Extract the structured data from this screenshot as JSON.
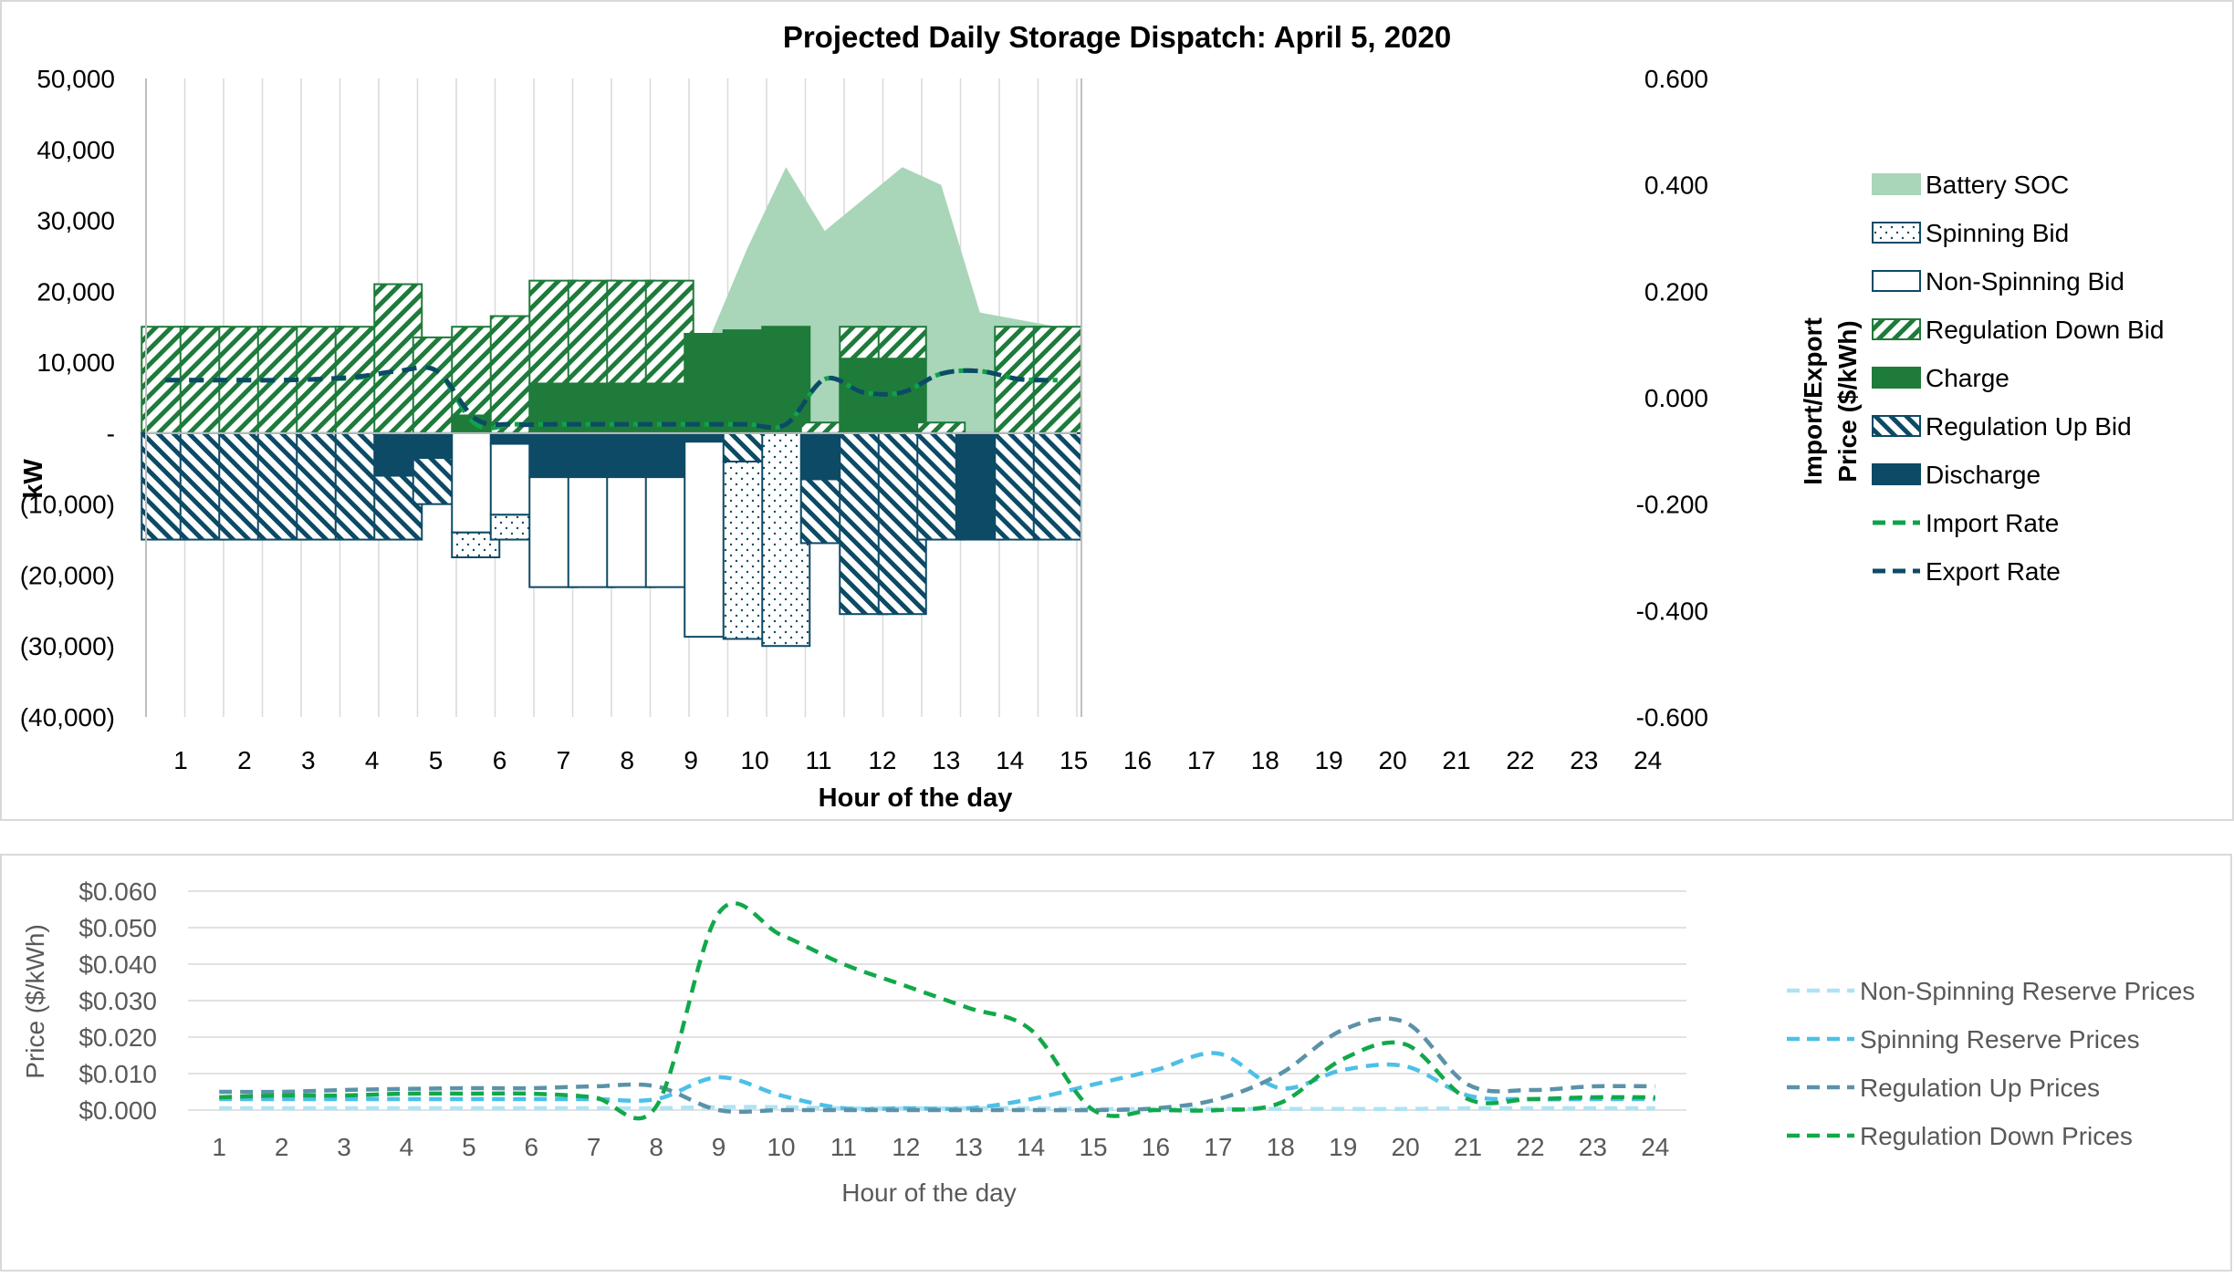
{
  "chart_data": [
    {
      "type": "bar",
      "title": "Projected Daily Storage Dispatch: April 5, 2020",
      "xlabel": "Hour of the day",
      "ylabel": "kW",
      "y2label_line1": "Import/Export",
      "y2label_line2": "Price ($/kWh)",
      "ylim": [
        -40000,
        50000
      ],
      "y2lim": [
        -0.6,
        0.6
      ],
      "yticks": [
        "50,000",
        "40,000",
        "30,000",
        "20,000",
        "10,000",
        "-",
        "(10,000)",
        "(20,000)",
        "(30,000)",
        "(40,000)"
      ],
      "y2ticks": [
        "0.600",
        "0.400",
        "0.200",
        "0.000",
        "-0.200",
        "-0.400",
        "-0.600"
      ],
      "categories": [
        "1",
        "2",
        "3",
        "4",
        "5",
        "6",
        "7",
        "8",
        "9",
        "10",
        "11",
        "12",
        "13",
        "14",
        "15",
        "16",
        "17",
        "18",
        "19",
        "20",
        "21",
        "22",
        "23",
        "24"
      ],
      "grid": "vertical",
      "legend_position": "right",
      "colors": {
        "soc": "#a9d5b9",
        "green": "#1e7b3a",
        "dark": "#0d4a66",
        "line_green": "#0ea34a",
        "line_dark": "#0d4a66"
      },
      "series": [
        {
          "name": "Battery SOC",
          "kind": "area",
          "values": [
            13500,
            13000,
            12500,
            11500,
            10500,
            10000,
            8000,
            7500,
            3500,
            3500,
            3500,
            3500,
            3500,
            3500,
            13000,
            26000,
            37500,
            28500,
            33000,
            37500,
            35000,
            17000,
            16000,
            15000
          ]
        },
        {
          "name": "Spinning Bid",
          "kind": "bar_negative",
          "values": [
            0,
            0,
            0,
            0,
            0,
            0,
            0,
            0,
            -3500,
            -3500,
            0,
            0,
            0,
            0,
            0,
            -25000,
            -30000,
            0,
            0,
            0,
            0,
            0,
            0,
            0
          ]
        },
        {
          "name": "Non-Spinning Bid",
          "kind": "bar_negative",
          "values": [
            0,
            0,
            0,
            0,
            0,
            0,
            0,
            0,
            -14000,
            -10000,
            -15500,
            -15500,
            -15500,
            -15500,
            -27500,
            0,
            0,
            0,
            0,
            0,
            0,
            0,
            0,
            0
          ]
        },
        {
          "name": "Regulation Down Bid",
          "kind": "bar_positive",
          "values": [
            15000,
            15000,
            15000,
            15000,
            15000,
            15000,
            21000,
            13500,
            12500,
            16500,
            14500,
            14500,
            14500,
            14500,
            0,
            0,
            0,
            1500,
            4500,
            4500,
            1500,
            0,
            15000,
            15000
          ]
        },
        {
          "name": "Charge",
          "kind": "bar_positive",
          "values": [
            0,
            0,
            0,
            0,
            0,
            0,
            0,
            0,
            2500,
            0,
            7000,
            7000,
            7000,
            7000,
            14000,
            14500,
            15000,
            0,
            10500,
            10500,
            0,
            0,
            0,
            0
          ]
        },
        {
          "name": "Regulation Up Bid",
          "kind": "bar_negative",
          "values": [
            -15000,
            -15000,
            -15000,
            -15000,
            -15000,
            -15000,
            -9000,
            -6500,
            0,
            0,
            0,
            0,
            0,
            0,
            0,
            -4000,
            0,
            -9000,
            -25500,
            -25500,
            -15000,
            0,
            -15000,
            -15000
          ]
        },
        {
          "name": "Discharge",
          "kind": "bar_negative",
          "values": [
            0,
            0,
            0,
            0,
            0,
            0,
            -6000,
            -3500,
            0,
            -1500,
            -6200,
            -6200,
            -6200,
            -6200,
            -1200,
            0,
            0,
            -6500,
            0,
            0,
            0,
            -15000,
            0,
            0
          ]
        },
        {
          "name": "Import Rate",
          "kind": "line_y2",
          "values": [
            0.033,
            0.033,
            0.033,
            0.033,
            0.035,
            0.038,
            0.05,
            0.05,
            -0.05,
            -0.05,
            -0.05,
            -0.05,
            -0.05,
            -0.05,
            -0.05,
            -0.05,
            -0.05,
            0.035,
            0.01,
            0.01,
            0.045,
            0.05,
            0.035,
            0.033
          ]
        },
        {
          "name": "Export Rate",
          "kind": "line_y2",
          "values": [
            0.033,
            0.033,
            0.033,
            0.033,
            0.035,
            0.04,
            0.05,
            0.05,
            -0.04,
            -0.05,
            -0.05,
            -0.05,
            -0.05,
            -0.05,
            -0.05,
            -0.05,
            -0.05,
            0.035,
            0.01,
            0.01,
            0.045,
            0.05,
            0.035,
            0.033
          ]
        }
      ]
    },
    {
      "type": "line",
      "title": "",
      "xlabel": "Hour of the day",
      "ylabel": "Price ($/kWh)",
      "ylim": [
        0,
        0.06
      ],
      "yticks": [
        "$0.060",
        "$0.050",
        "$0.040",
        "$0.030",
        "$0.020",
        "$0.010",
        "$0.000"
      ],
      "categories": [
        "1",
        "2",
        "3",
        "4",
        "5",
        "6",
        "7",
        "8",
        "9",
        "10",
        "11",
        "12",
        "13",
        "14",
        "15",
        "16",
        "17",
        "18",
        "19",
        "20",
        "21",
        "22",
        "23",
        "24"
      ],
      "grid": "horizontal",
      "legend_position": "right",
      "series": [
        {
          "name": "Non-Spinning Reserve Prices",
          "color": "#aee3f5",
          "values": [
            0.0005,
            0.0005,
            0.0005,
            0.0005,
            0.0005,
            0.0005,
            0.0005,
            0.0005,
            0.0008,
            0.0008,
            0.0005,
            0.0005,
            0.0005,
            0.0005,
            0.0003,
            0.0003,
            0.0003,
            0.0003,
            0.0003,
            0.0003,
            0.0005,
            0.0005,
            0.0005,
            0.0005
          ]
        },
        {
          "name": "Spinning Reserve Prices",
          "color": "#4cc0e8",
          "values": [
            0.003,
            0.003,
            0.003,
            0.003,
            0.003,
            0.003,
            0.003,
            0.003,
            0.009,
            0.004,
            0.0005,
            0.0005,
            0.0005,
            0.003,
            0.007,
            0.011,
            0.0155,
            0.006,
            0.011,
            0.012,
            0.004,
            0.003,
            0.003,
            0.003
          ]
        },
        {
          "name": "Regulation Up Prices",
          "color": "#5b92a8",
          "values": [
            0.005,
            0.005,
            0.0055,
            0.0058,
            0.006,
            0.006,
            0.0065,
            0.0065,
            0.0,
            0.0,
            0.0,
            0.0,
            0.0,
            0.0,
            0.0,
            0.0005,
            0.003,
            0.01,
            0.022,
            0.024,
            0.007,
            0.0055,
            0.0065,
            0.0065
          ]
        },
        {
          "name": "Regulation Down Prices",
          "color": "#12a84a",
          "values": [
            0.0035,
            0.004,
            0.004,
            0.0045,
            0.0045,
            0.0045,
            0.0035,
            0.001,
            0.054,
            0.048,
            0.04,
            0.034,
            0.028,
            0.022,
            0.0,
            0.0,
            0.0,
            0.002,
            0.014,
            0.018,
            0.003,
            0.003,
            0.0035,
            0.0035
          ]
        }
      ]
    }
  ]
}
